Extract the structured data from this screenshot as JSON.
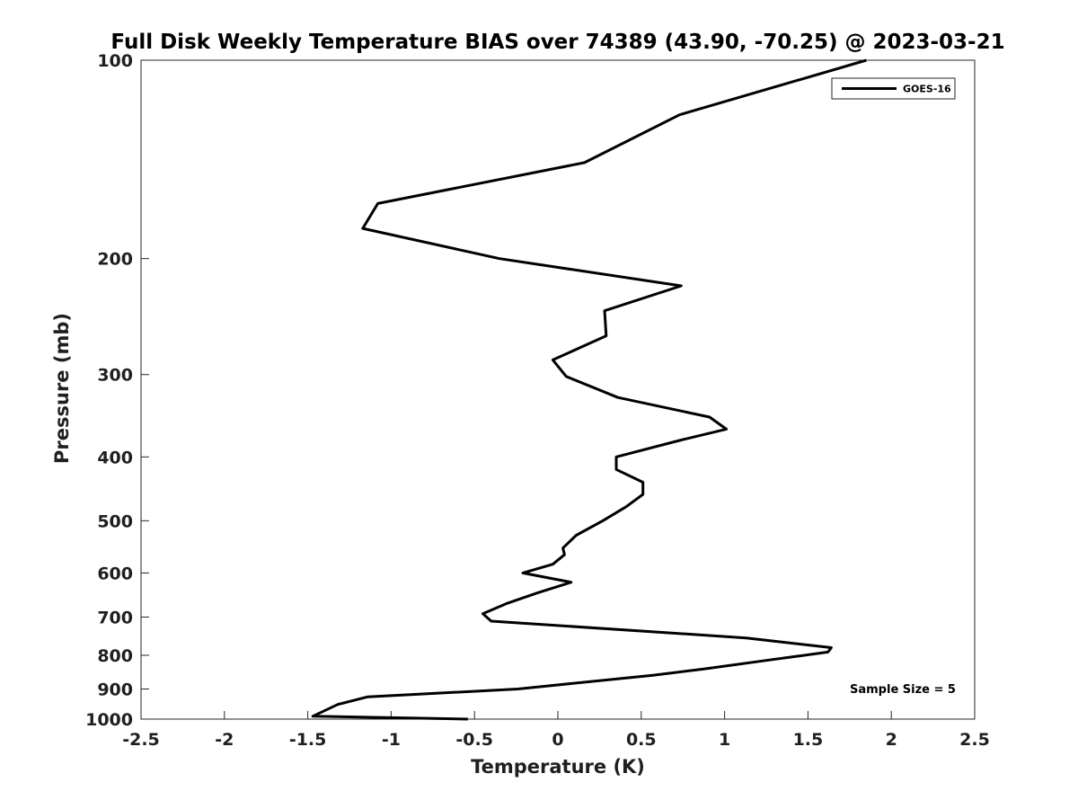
{
  "chart_data": {
    "type": "line",
    "title": "Full Disk Weekly Temperature BIAS over 74389 (43.90, -70.25) @ 2023-03-21",
    "xlabel": "Temperature (K)",
    "ylabel": "Pressure (mb)",
    "xlim": [
      -2.5,
      2.5
    ],
    "ylim": [
      100,
      1000
    ],
    "y_scale": "log",
    "y_reversed": true,
    "x_ticks": [
      "-2.5",
      "-2",
      "-1.5",
      "-1",
      "-0.5",
      "0",
      "0.5",
      "1",
      "1.5",
      "2",
      "2.5"
    ],
    "y_ticks": [
      "100",
      "200",
      "300",
      "400",
      "500",
      "600",
      "700",
      "800",
      "900",
      "1000"
    ],
    "grid": false,
    "legend_position": "top-right",
    "series": [
      {
        "name": "GOES-16",
        "color": "#000000",
        "points": [
          {
            "x": 1.85,
            "y": 100
          },
          {
            "x": 0.73,
            "y": 121
          },
          {
            "x": 0.16,
            "y": 143
          },
          {
            "x": -1.08,
            "y": 165
          },
          {
            "x": -1.17,
            "y": 180
          },
          {
            "x": -0.35,
            "y": 200
          },
          {
            "x": 0.74,
            "y": 220
          },
          {
            "x": 0.28,
            "y": 240
          },
          {
            "x": 0.29,
            "y": 262
          },
          {
            "x": -0.03,
            "y": 285
          },
          {
            "x": 0.05,
            "y": 302
          },
          {
            "x": 0.36,
            "y": 325
          },
          {
            "x": 0.91,
            "y": 348
          },
          {
            "x": 1.01,
            "y": 363
          },
          {
            "x": 0.74,
            "y": 377
          },
          {
            "x": 0.35,
            "y": 400
          },
          {
            "x": 0.35,
            "y": 418
          },
          {
            "x": 0.51,
            "y": 437
          },
          {
            "x": 0.51,
            "y": 456
          },
          {
            "x": 0.41,
            "y": 476
          },
          {
            "x": 0.27,
            "y": 500
          },
          {
            "x": 0.11,
            "y": 526
          },
          {
            "x": 0.03,
            "y": 550
          },
          {
            "x": 0.04,
            "y": 563
          },
          {
            "x": -0.03,
            "y": 582
          },
          {
            "x": -0.21,
            "y": 600
          },
          {
            "x": 0.08,
            "y": 620
          },
          {
            "x": -0.12,
            "y": 643
          },
          {
            "x": -0.31,
            "y": 668
          },
          {
            "x": -0.45,
            "y": 692
          },
          {
            "x": -0.4,
            "y": 710
          },
          {
            "x": 1.13,
            "y": 753
          },
          {
            "x": 1.64,
            "y": 779
          },
          {
            "x": 1.62,
            "y": 791
          },
          {
            "x": 1.29,
            "y": 812
          },
          {
            "x": 0.88,
            "y": 839
          },
          {
            "x": 0.57,
            "y": 858
          },
          {
            "x": -0.24,
            "y": 900
          },
          {
            "x": -1.14,
            "y": 925
          },
          {
            "x": -1.32,
            "y": 950
          },
          {
            "x": -1.47,
            "y": 990
          },
          {
            "x": -0.54,
            "y": 1000
          }
        ]
      }
    ],
    "annotations": [
      {
        "text": "Sample Size = 5"
      }
    ]
  }
}
